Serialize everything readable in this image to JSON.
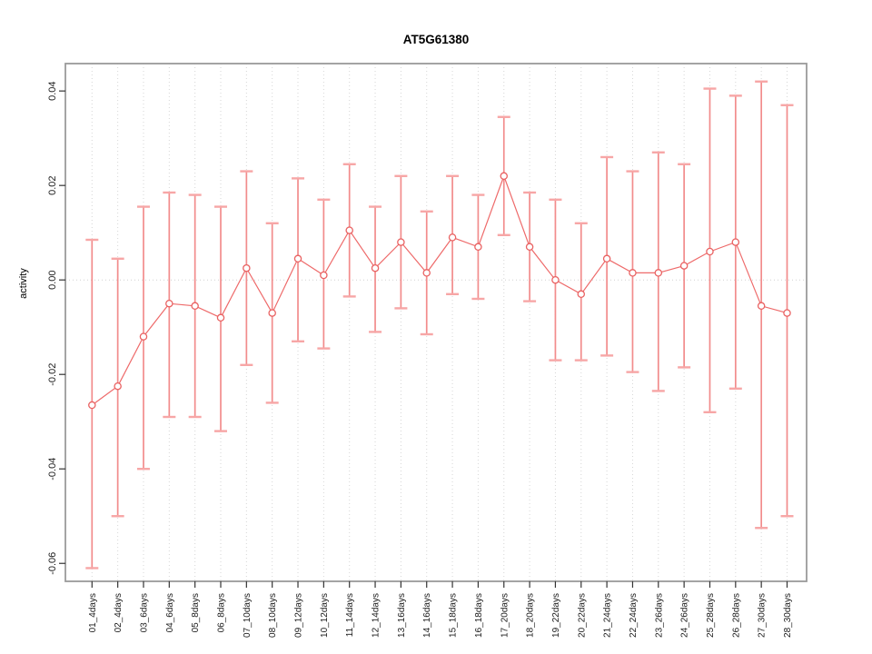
{
  "chart_data": {
    "type": "scatter",
    "title": "AT5G61380",
    "xlabel": "",
    "ylabel": "activity",
    "legend": "none",
    "grid": "vertical-dotted-per-category",
    "zero_reference_line": 0,
    "ylim": [
      -0.0638,
      0.0458
    ],
    "yticks": [
      0.04,
      0.02,
      0.0,
      -0.02,
      -0.04,
      -0.06
    ],
    "ytick_labels": [
      "0.04",
      "0.02",
      "0.00",
      "-0.02",
      "-0.04",
      "-0.06"
    ],
    "categories": [
      "01_4days",
      "02_4days",
      "03_6days",
      "04_6days",
      "05_8days",
      "06_8days",
      "07_10days",
      "08_10days",
      "09_12days",
      "10_12days",
      "11_14days",
      "12_14days",
      "13_16days",
      "14_16days",
      "15_18days",
      "16_18days",
      "17_20days",
      "18_20days",
      "19_22days",
      "20_22days",
      "21_24days",
      "22_24days",
      "23_26days",
      "24_26days",
      "25_28days",
      "26_28days",
      "27_30days",
      "28_30days"
    ],
    "series": [
      {
        "name": "activity",
        "marker": "open-circle",
        "values": [
          -0.0265,
          -0.0225,
          -0.012,
          -0.005,
          -0.0055,
          -0.008,
          0.0025,
          -0.007,
          0.0045,
          0.001,
          0.0105,
          0.0025,
          0.008,
          0.0015,
          0.009,
          0.007,
          0.022,
          0.007,
          0.0,
          -0.003,
          0.0045,
          0.0015,
          0.0015,
          0.003,
          0.006,
          0.008,
          -0.0055,
          -0.007
        ],
        "upper": [
          0.0085,
          0.0045,
          0.0155,
          0.0185,
          0.018,
          0.0155,
          0.023,
          0.012,
          0.0215,
          0.017,
          0.0245,
          0.0155,
          0.022,
          0.0145,
          0.022,
          0.018,
          0.0345,
          0.0185,
          0.017,
          0.012,
          0.026,
          0.023,
          0.027,
          0.0245,
          0.0405,
          0.039,
          0.042,
          0.037
        ],
        "lower": [
          -0.061,
          -0.05,
          -0.04,
          -0.029,
          -0.029,
          -0.032,
          -0.018,
          -0.026,
          -0.013,
          -0.0145,
          -0.0035,
          -0.011,
          -0.006,
          -0.0115,
          -0.003,
          -0.004,
          0.0095,
          -0.0045,
          -0.017,
          -0.017,
          -0.016,
          -0.0195,
          -0.0235,
          -0.0185,
          -0.028,
          -0.023,
          -0.0525,
          -0.05
        ]
      }
    ],
    "colors": {
      "whisker": "#f28c8c",
      "whisker_cap": "#f7a6a6",
      "line": "#ee6a6a",
      "marker_stroke": "#e96262",
      "marker_fill": "#ffffff",
      "gridline": "#d6d6d6",
      "zero_line": "#d0d0d0",
      "box": "#9a9a9a",
      "tick": "#333333",
      "tick_label": "#1a1a1a"
    }
  }
}
